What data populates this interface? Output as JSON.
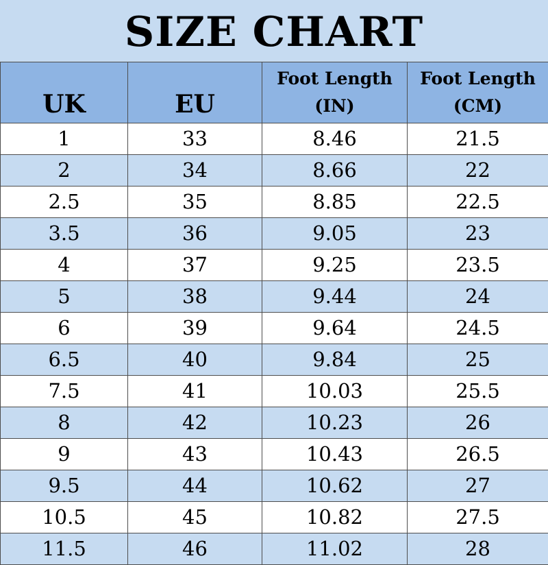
{
  "title": "SIZE CHART",
  "headers": {
    "uk": "UK",
    "eu": "EU",
    "foot_in": [
      "Foot Length",
      "(IN)"
    ],
    "foot_cm": [
      "Foot Length",
      "(CM)"
    ]
  },
  "rows": [
    {
      "uk": "1",
      "eu": "33",
      "in": "8.46",
      "cm": "21.5"
    },
    {
      "uk": "2",
      "eu": "34",
      "in": "8.66",
      "cm": "22"
    },
    {
      "uk": "2.5",
      "eu": "35",
      "in": "8.85",
      "cm": "22.5"
    },
    {
      "uk": "3.5",
      "eu": "36",
      "in": "9.05",
      "cm": "23"
    },
    {
      "uk": "4",
      "eu": "37",
      "in": "9.25",
      "cm": "23.5"
    },
    {
      "uk": "5",
      "eu": "38",
      "in": "9.44",
      "cm": "24"
    },
    {
      "uk": "6",
      "eu": "39",
      "in": "9.64",
      "cm": "24.5"
    },
    {
      "uk": "6.5",
      "eu": "40",
      "in": "9.84",
      "cm": "25"
    },
    {
      "uk": "7.5",
      "eu": "41",
      "in": "10.03",
      "cm": "25.5"
    },
    {
      "uk": "8",
      "eu": "42",
      "in": "10.23",
      "cm": "26"
    },
    {
      "uk": "9",
      "eu": "43",
      "in": "10.43",
      "cm": "26.5"
    },
    {
      "uk": "9.5",
      "eu": "44",
      "in": "10.62",
      "cm": "27"
    },
    {
      "uk": "10.5",
      "eu": "45",
      "in": "10.82",
      "cm": "27.5"
    },
    {
      "uk": "11.5",
      "eu": "46",
      "in": "11.02",
      "cm": "28"
    }
  ],
  "colors": {
    "title_background": "#c6dbf1",
    "header_background": "#8eb4e3",
    "row_alt_background": "#c6dbf1",
    "row_background": "#ffffff",
    "border": "#4d4d4d"
  }
}
